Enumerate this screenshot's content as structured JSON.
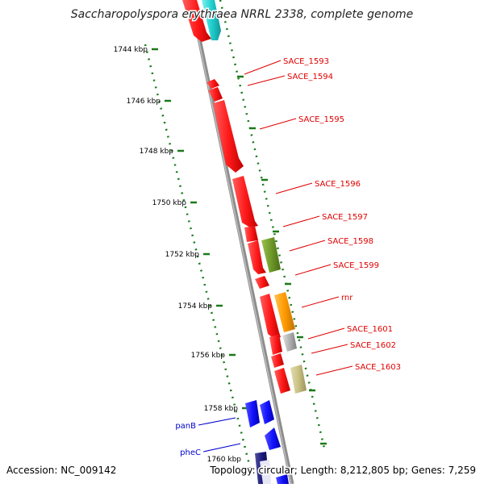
{
  "title": "Saccharopolyspora erythraea NRRL 2338, complete genome",
  "accession": "Accession: NC_009142",
  "topology": "Topology: circular; Length: 8,212,805 bp; Genes: 7,259",
  "colors": {
    "backbone": "#8c8c8c",
    "ticks": "#1a7a1a",
    "red_gene": "#ff1a1a",
    "red_label": "#e00000",
    "blue_gene": "#1414ff",
    "blue_label": "#0000cc",
    "cyan_gene": "#22d0d0",
    "green_gene": "#6e9a28",
    "orange_gene": "#ff9a00",
    "grey_gene": "#b0b0b0",
    "khaki_gene": "#c8c084",
    "navy_gene": "#1a1a7a"
  },
  "ticks": [
    {
      "label": "1744 kbp"
    },
    {
      "label": "1746 kbp"
    },
    {
      "label": "1748 kbp"
    },
    {
      "label": "1750 kbp"
    },
    {
      "label": "1752 kbp"
    },
    {
      "label": "1754 kbp"
    },
    {
      "label": "1756 kbp"
    },
    {
      "label": "1758 kbp"
    },
    {
      "label": "1760 kbp"
    }
  ],
  "gene_labels": [
    {
      "text": "SACE_1593",
      "color": "red"
    },
    {
      "text": "SACE_1594",
      "color": "red"
    },
    {
      "text": "SACE_1595",
      "color": "red"
    },
    {
      "text": "SACE_1596",
      "color": "red"
    },
    {
      "text": "SACE_1597",
      "color": "red"
    },
    {
      "text": "SACE_1598",
      "color": "red"
    },
    {
      "text": "SACE_1599",
      "color": "red"
    },
    {
      "text": "rnr",
      "color": "red"
    },
    {
      "text": "SACE_1601",
      "color": "red"
    },
    {
      "text": "SACE_1602",
      "color": "red"
    },
    {
      "text": "SACE_1603",
      "color": "red"
    },
    {
      "text": "panB",
      "color": "blue"
    },
    {
      "text": "pheC",
      "color": "blue"
    }
  ]
}
